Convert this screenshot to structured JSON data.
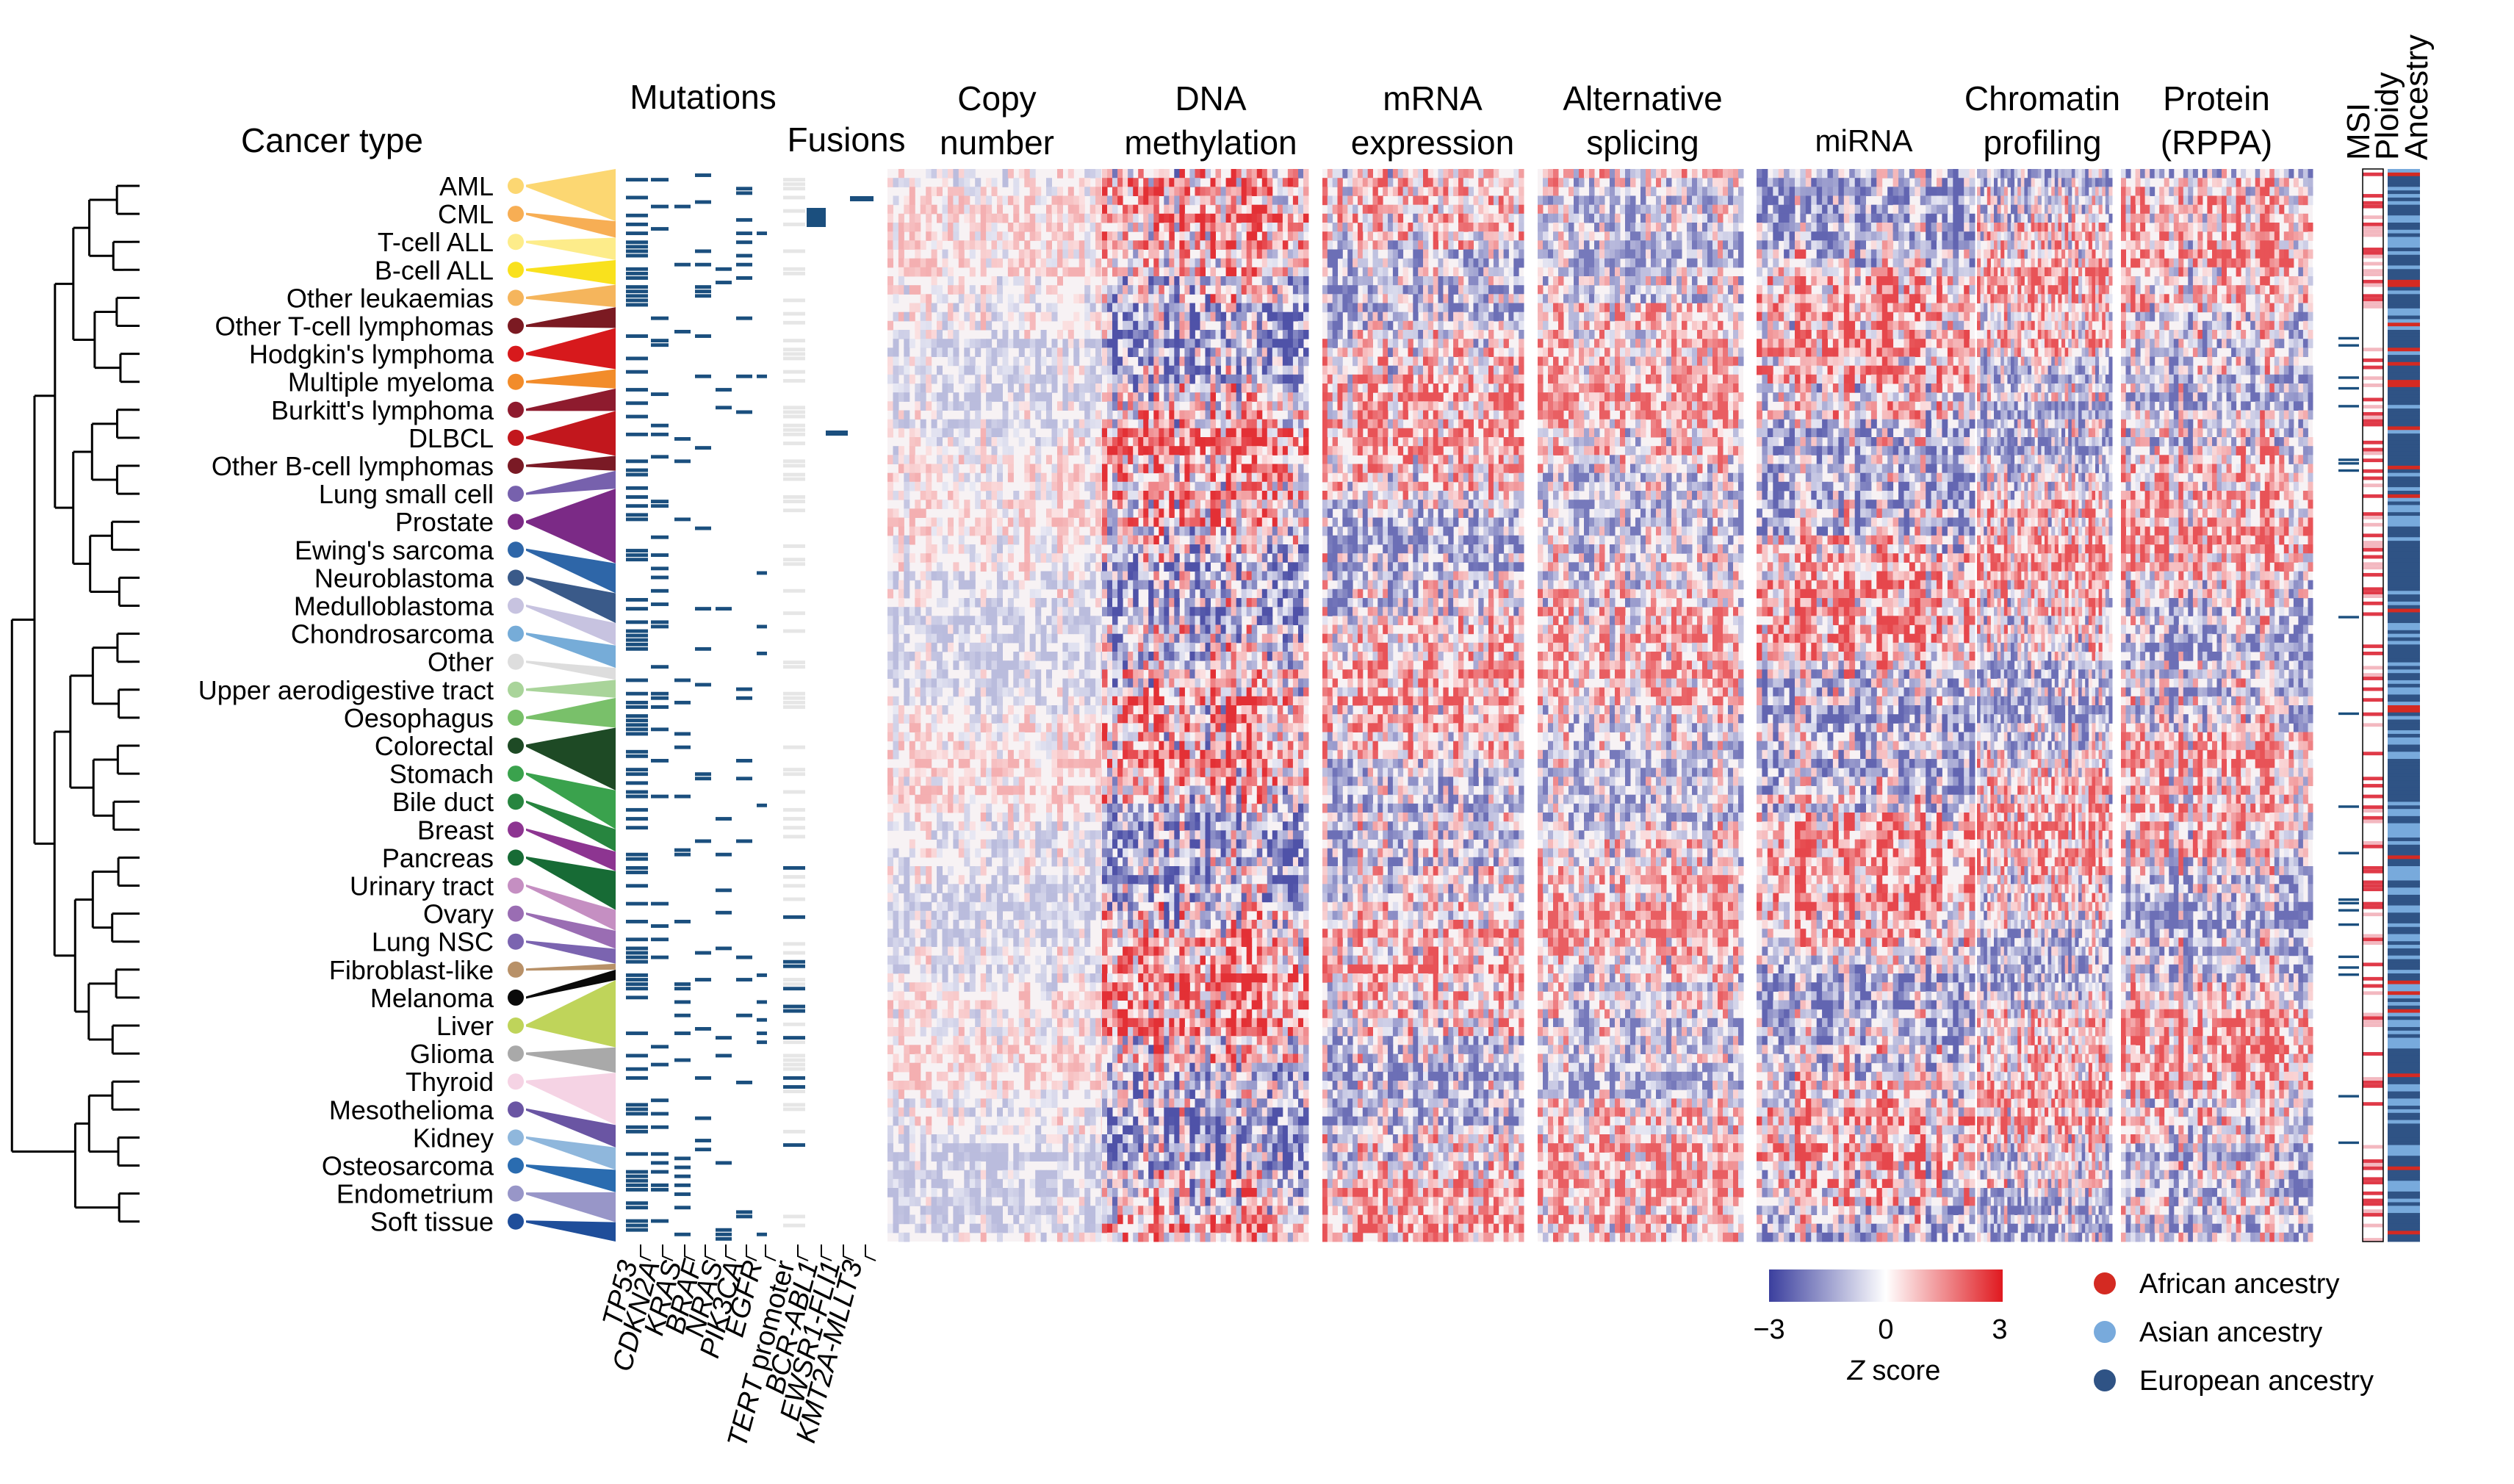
{
  "cancer_type_header": "Cancer type",
  "cancer_types": [
    {
      "name": "AML",
      "color": "#fcd772"
    },
    {
      "name": "CML",
      "color": "#f7ae54"
    },
    {
      "name": "T-cell ALL",
      "color": "#fdec8a"
    },
    {
      "name": "B-cell ALL",
      "color": "#f9e11d"
    },
    {
      "name": "Other leukaemias",
      "color": "#f5b55c"
    },
    {
      "name": "Other T-cell lymphomas",
      "color": "#7b1a22"
    },
    {
      "name": "Hodgkin's lymphoma",
      "color": "#d7191c"
    },
    {
      "name": "Multiple myeloma",
      "color": "#f28c2a"
    },
    {
      "name": "Burkitt's lymphoma",
      "color": "#8e1b2e"
    },
    {
      "name": "DLBCL",
      "color": "#c2171d"
    },
    {
      "name": "Other B-cell lymphomas",
      "color": "#7a1a25"
    },
    {
      "name": "Lung small cell",
      "color": "#7761ad"
    },
    {
      "name": "Prostate",
      "color": "#7b2a86"
    },
    {
      "name": "Ewing's sarcoma",
      "color": "#2e66a8"
    },
    {
      "name": "Neuroblastoma",
      "color": "#3a5a89"
    },
    {
      "name": "Medulloblastoma",
      "color": "#c7c3e0"
    },
    {
      "name": "Chondrosarcoma",
      "color": "#76acd8"
    },
    {
      "name": "Other",
      "color": "#dddddd"
    },
    {
      "name": "Upper aerodigestive tract",
      "color": "#a9d49a"
    },
    {
      "name": "Oesophagus",
      "color": "#79c06a"
    },
    {
      "name": "Colorectal",
      "color": "#1e4a25"
    },
    {
      "name": "Stomach",
      "color": "#3aa24d"
    },
    {
      "name": "Bile duct",
      "color": "#27853f"
    },
    {
      "name": "Breast",
      "color": "#8d3591"
    },
    {
      "name": "Pancreas",
      "color": "#176b35"
    },
    {
      "name": "Urinary tract",
      "color": "#c58fc2"
    },
    {
      "name": "Ovary",
      "color": "#9a6db3"
    },
    {
      "name": "Lung NSC",
      "color": "#7b64b0"
    },
    {
      "name": "Fibroblast-like",
      "color": "#b89168"
    },
    {
      "name": "Melanoma",
      "color": "#0a0a0a"
    },
    {
      "name": "Liver",
      "color": "#bfd45a"
    },
    {
      "name": "Glioma",
      "color": "#a9a9a9"
    },
    {
      "name": "Thyroid",
      "color": "#f5d3e4"
    },
    {
      "name": "Mesothelioma",
      "color": "#6a55a3"
    },
    {
      "name": "Kidney",
      "color": "#8fb7dc"
    },
    {
      "name": "Osteosarcoma",
      "color": "#2a6cb0"
    },
    {
      "name": "Endometrium",
      "color": "#9896c8"
    },
    {
      "name": "Soft tissue",
      "color": "#1f4e9a"
    }
  ],
  "sections": {
    "mutations": "Mutations",
    "fusions": "Fusions",
    "copy_number": [
      "Copy",
      "number"
    ],
    "dna_methylation": [
      "DNA",
      "methylation"
    ],
    "mrna_expression": [
      "mRNA",
      "expression"
    ],
    "alternative_splicing": [
      "Alternative",
      "splicing"
    ],
    "mirna": "miRNA",
    "chromatin_profiling": [
      "Chromatin",
      "profiling"
    ],
    "protein": [
      "Protein",
      "(RPPA)"
    ],
    "msi": "MSI",
    "ploidy": "Ploidy",
    "ancestry": "Ancestry"
  },
  "genes": [
    "TP53",
    "CDKN2A",
    "KRAS",
    "BRAF",
    "NRAS",
    "PIK3CA",
    "EGFR"
  ],
  "tert_promoter": {
    "italic": "TERT",
    "plain": " promoter"
  },
  "fusion_genes": [
    "BCR-ABL1",
    "EWSR1-FLI1",
    "KMT2A-MLLT3"
  ],
  "zscore_legend": {
    "min": "−3",
    "mid": "0",
    "max": "3",
    "label_italic": "Z",
    "label_plain": " score",
    "colors": [
      "#3b3f9e",
      "#ffffff",
      "#e0191f"
    ]
  },
  "ancestry_legend": [
    {
      "label": "African ancestry",
      "color": "#d42a22"
    },
    {
      "label": "Asian ancestry",
      "color": "#78aadc"
    },
    {
      "label": "European ancestry",
      "color": "#2f5385"
    }
  ],
  "palette": {
    "mutation": "#1b4f7e",
    "fusion_bg": "#e6e6e6",
    "blue": "#3b3f9e",
    "red": "#e0191f"
  }
}
